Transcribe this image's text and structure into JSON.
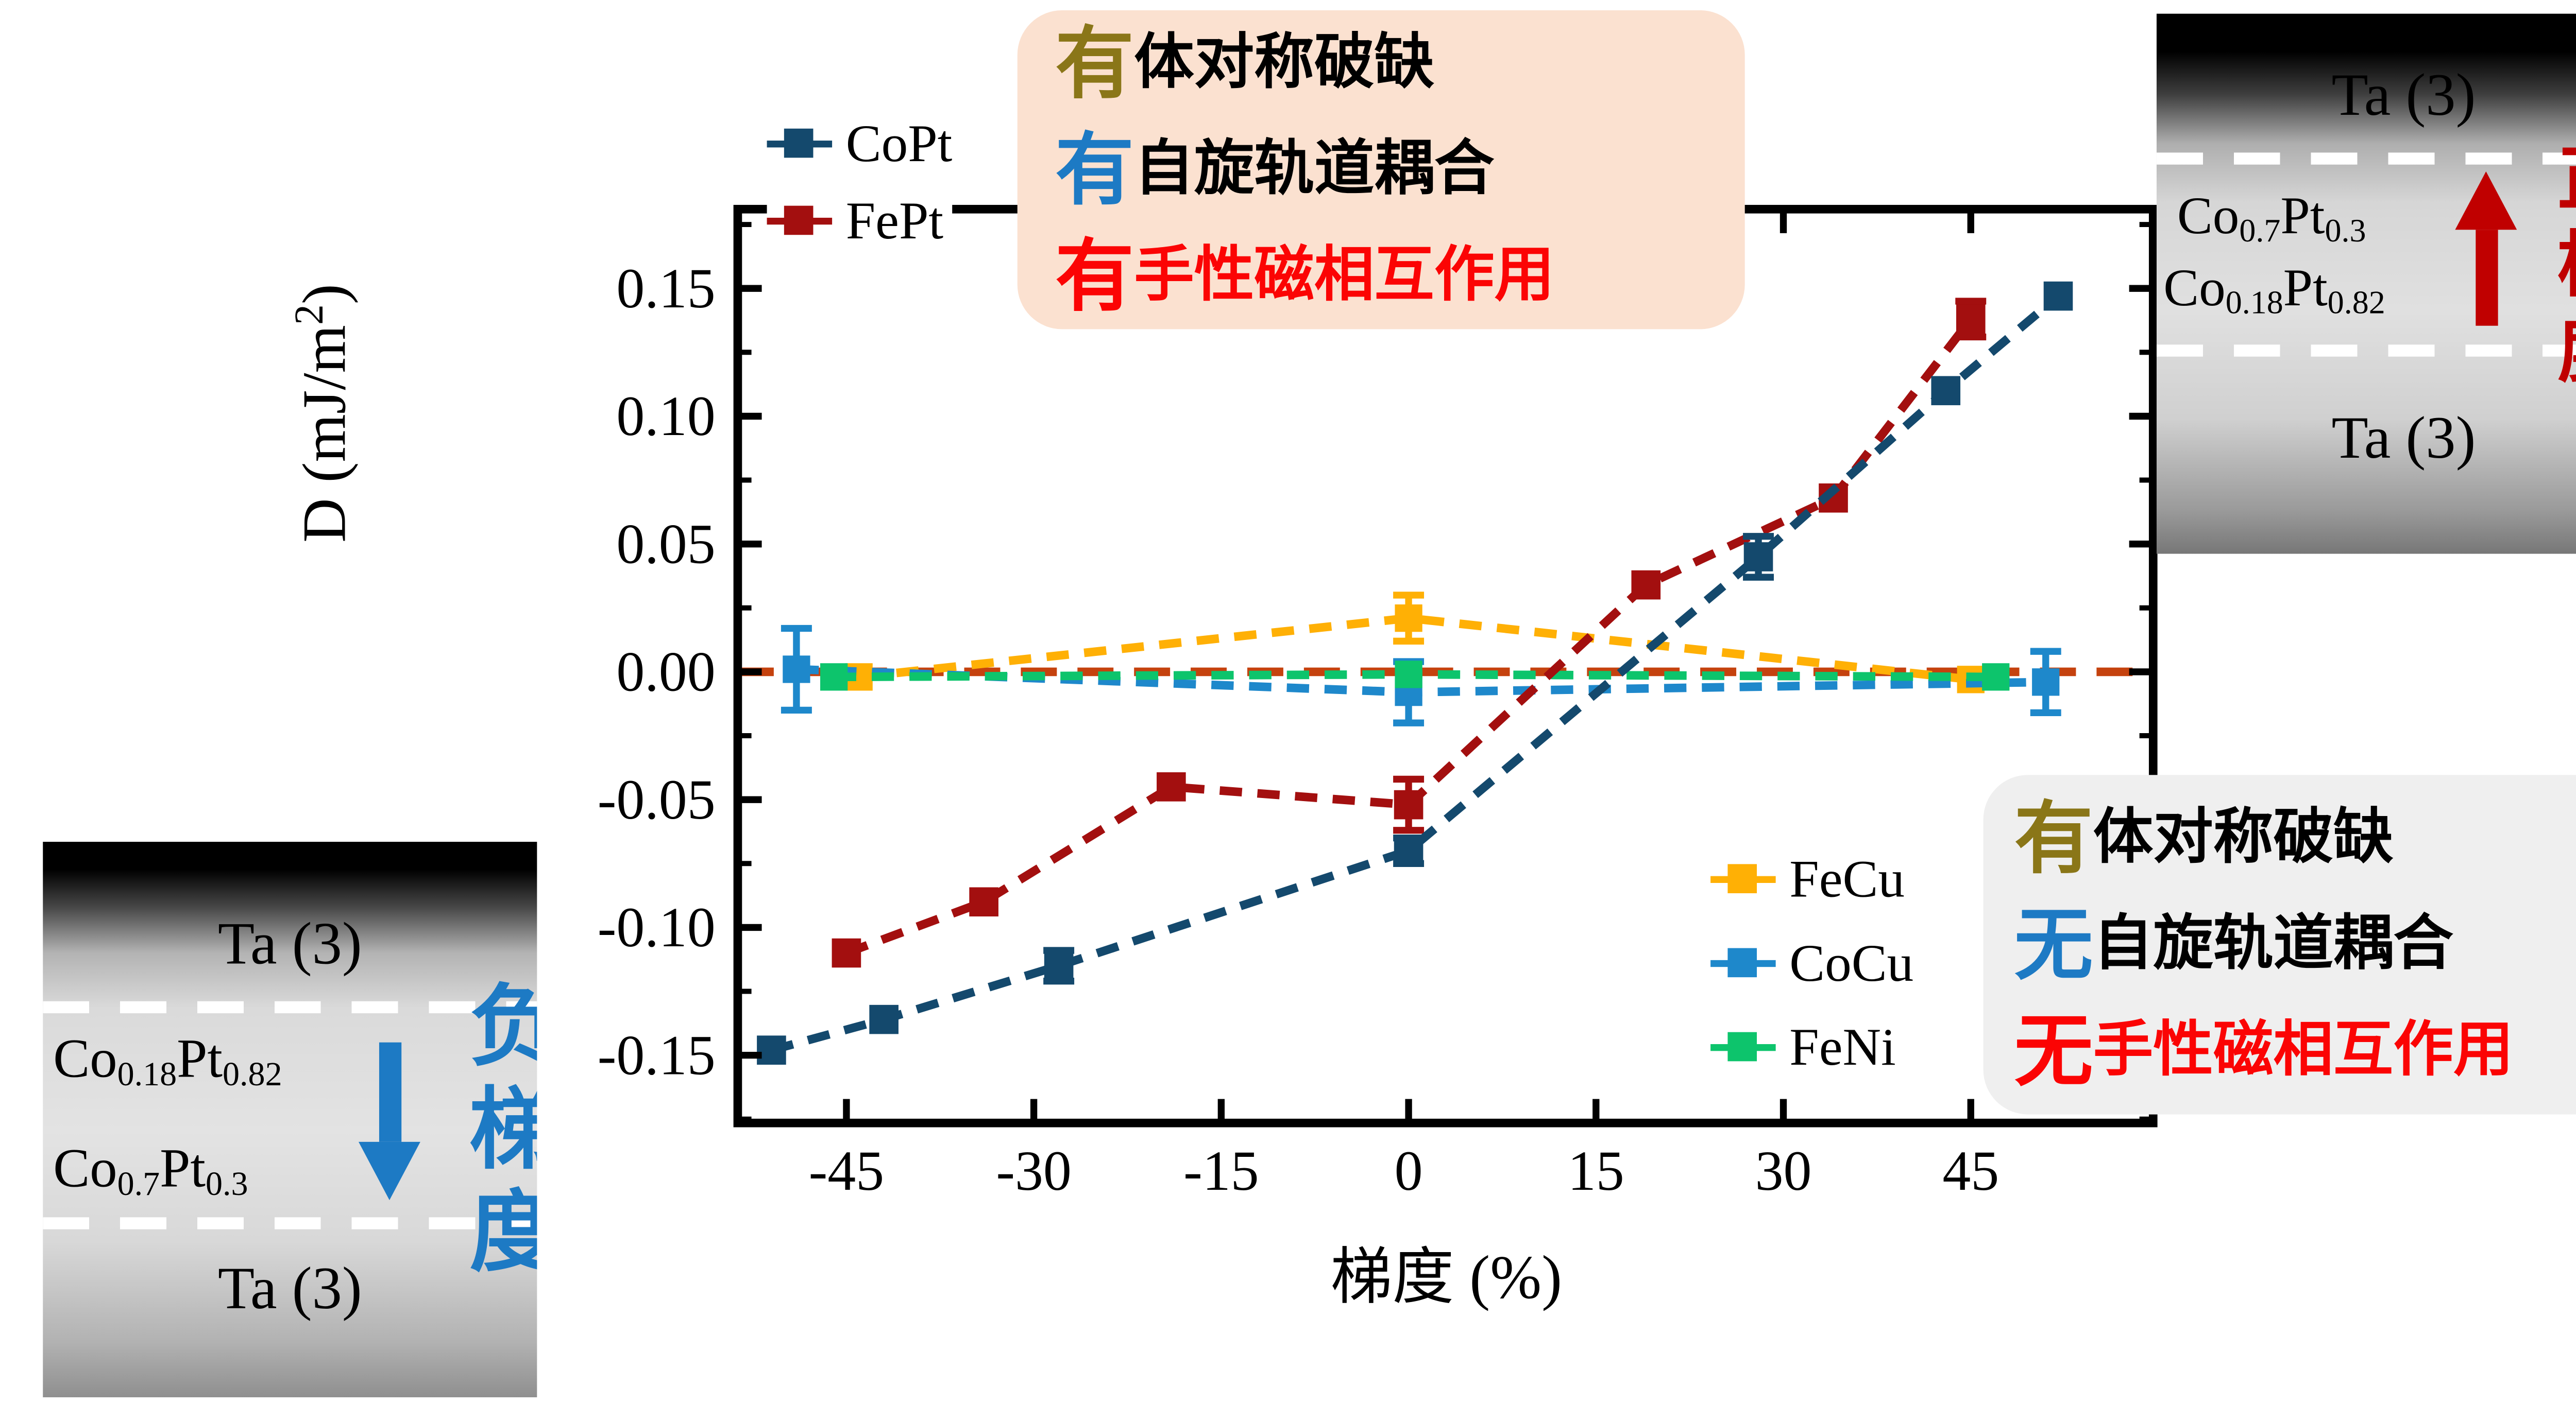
{
  "colors": {
    "black": "#000000",
    "copt": "#14496d",
    "fept": "#a30f0f",
    "fecu": "#ffb005",
    "cocu": "#1e88cb",
    "feni": "#0dc46c",
    "zero_line": "#c5420e",
    "axis": "#000000",
    "olive": "#8a7618",
    "blue_text": "#1d7ac4",
    "red_text": "#fb0404",
    "top_box_bg": "#fbe1d0",
    "gray_box_bg": "#efefef",
    "neg_gradient": "#1d7ac4",
    "pos_gradient": "#c00000"
  },
  "axes": {
    "x_label_cn": "梯度",
    "x_label_unit": " (%)",
    "y_label_pre": "D (mJ/m",
    "y_label_sup": "2",
    "y_label_post": ")",
    "x_ticks": [
      {
        "v": -45,
        "label": "-45"
      },
      {
        "v": -30,
        "label": "-30"
      },
      {
        "v": -15,
        "label": "-15"
      },
      {
        "v": 0,
        "label": "0"
      },
      {
        "v": 15,
        "label": "15"
      },
      {
        "v": 30,
        "label": "30"
      },
      {
        "v": 45,
        "label": "45"
      }
    ],
    "y_ticks": [
      {
        "v": 0.15,
        "label": "0.15"
      },
      {
        "v": 0.1,
        "label": "0.10"
      },
      {
        "v": 0.05,
        "label": "0.05"
      },
      {
        "v": 0.0,
        "label": "0.00"
      },
      {
        "v": -0.05,
        "label": "-0.05"
      },
      {
        "v": -0.1,
        "label": "-0.10"
      },
      {
        "v": -0.15,
        "label": "-0.15"
      }
    ],
    "y_minor_ticks": [
      -0.175,
      -0.125,
      -0.075,
      -0.025,
      0.025,
      0.075,
      0.125,
      0.175
    ],
    "xlim": [
      -53.7,
      59.6
    ],
    "ylim": [
      -0.1765,
      0.181
    ]
  },
  "chart_data": {
    "type": "line",
    "title": "",
    "xlabel": "梯度 (%)",
    "ylabel": "D (mJ/m2)",
    "grid": false,
    "zero_line": true,
    "legend_position": [
      "upper-left",
      "inner-lower-right"
    ],
    "series": [
      {
        "name": "FeCu",
        "color_key": "fecu",
        "marker": "square",
        "linestyle": "dashed",
        "points": [
          [
            -44,
            -0.002
          ],
          [
            0,
            0.021,
            0.009
          ],
          [
            45,
            -0.003
          ]
        ]
      },
      {
        "name": "CoCu",
        "color_key": "cocu",
        "marker": "square",
        "linestyle": "dashed",
        "points": [
          [
            -49,
            0.001,
            0.016
          ],
          [
            0,
            -0.008,
            0.012
          ],
          [
            51,
            -0.004,
            0.012
          ]
        ]
      },
      {
        "name": "FeNi",
        "color_key": "feni",
        "marker": "square",
        "linestyle": "dashed",
        "points": [
          [
            -46,
            -0.002
          ],
          [
            0,
            -0.001
          ],
          [
            47,
            -0.002
          ]
        ]
      },
      {
        "name": "FePt",
        "color_key": "fept",
        "marker": "square",
        "linestyle": "dashed",
        "points": [
          [
            -45,
            -0.11
          ],
          [
            -34,
            -0.09
          ],
          [
            -19,
            -0.045
          ],
          [
            0,
            -0.052,
            0.01
          ],
          [
            19,
            0.034
          ],
          [
            34,
            0.068
          ],
          [
            45,
            0.138,
            0.007
          ]
        ]
      },
      {
        "name": "CoPt",
        "color_key": "copt",
        "marker": "square",
        "linestyle": "dashed",
        "points": [
          [
            -51,
            -0.148
          ],
          [
            -42,
            -0.136
          ],
          [
            -28,
            -0.115,
            0.006
          ],
          [
            0,
            -0.07,
            0.005
          ],
          [
            28,
            0.045,
            0.008
          ],
          [
            43,
            0.11
          ],
          [
            52,
            0.147
          ]
        ]
      }
    ]
  },
  "legend_main": {
    "items": [
      {
        "label": "CoPt",
        "color_key": "copt"
      },
      {
        "label": "FePt",
        "color_key": "fept"
      }
    ]
  },
  "legend_flat": {
    "items": [
      {
        "label": "FeCu",
        "color_key": "fecu"
      },
      {
        "label": "CoCu",
        "color_key": "cocu"
      },
      {
        "label": "FeNi",
        "color_key": "feni"
      }
    ]
  },
  "annotations": {
    "top": {
      "lines": [
        {
          "lead": "有",
          "lead_color": "olive",
          "rest": "体对称破缺",
          "rest_color": "black"
        },
        {
          "lead": "有",
          "lead_color": "blue_text",
          "rest": "自旋轨道耦合",
          "rest_color": "black"
        },
        {
          "lead": "有",
          "lead_color": "red_text",
          "rest": "手性磁相互作用",
          "rest_color": "red_text"
        }
      ]
    },
    "bottom_right": {
      "lines": [
        {
          "lead": "有",
          "lead_color": "olive",
          "rest": "体对称破缺",
          "rest_color": "black"
        },
        {
          "lead": "无",
          "lead_color": "blue_text",
          "rest": "自旋轨道耦合",
          "rest_color": "black"
        },
        {
          "lead": "无",
          "lead_color": "red_text",
          "rest": "手性磁相互作用",
          "rest_color": "red_text"
        }
      ]
    }
  },
  "insets": {
    "left": {
      "top_layer": "Ta (3)",
      "mid1": {
        "p1": "Co",
        "s1": "0.18",
        "p2": "Pt",
        "s2": "0.82"
      },
      "mid2": {
        "p1": "Co",
        "s1": "0.7",
        "p2": "Pt",
        "s2": "0.3"
      },
      "bottom_layer": "Ta (3)",
      "gradient_label": "负梯度",
      "arrow_direction": "down",
      "arrow_color_key": "neg_gradient",
      "label_color_key": "neg_gradient"
    },
    "right": {
      "top_layer": "Ta (3)",
      "mid1": {
        "p1": "Co",
        "s1": "0.7",
        "p2": "Pt",
        "s2": "0.3"
      },
      "mid2": {
        "p1": "Co",
        "s1": "0.18",
        "p2": "Pt",
        "s2": "0.82"
      },
      "bottom_layer": "Ta (3)",
      "gradient_label": "正梯度",
      "arrow_direction": "up",
      "arrow_color_key": "pos_gradient",
      "label_color_key": "pos_gradient"
    }
  }
}
